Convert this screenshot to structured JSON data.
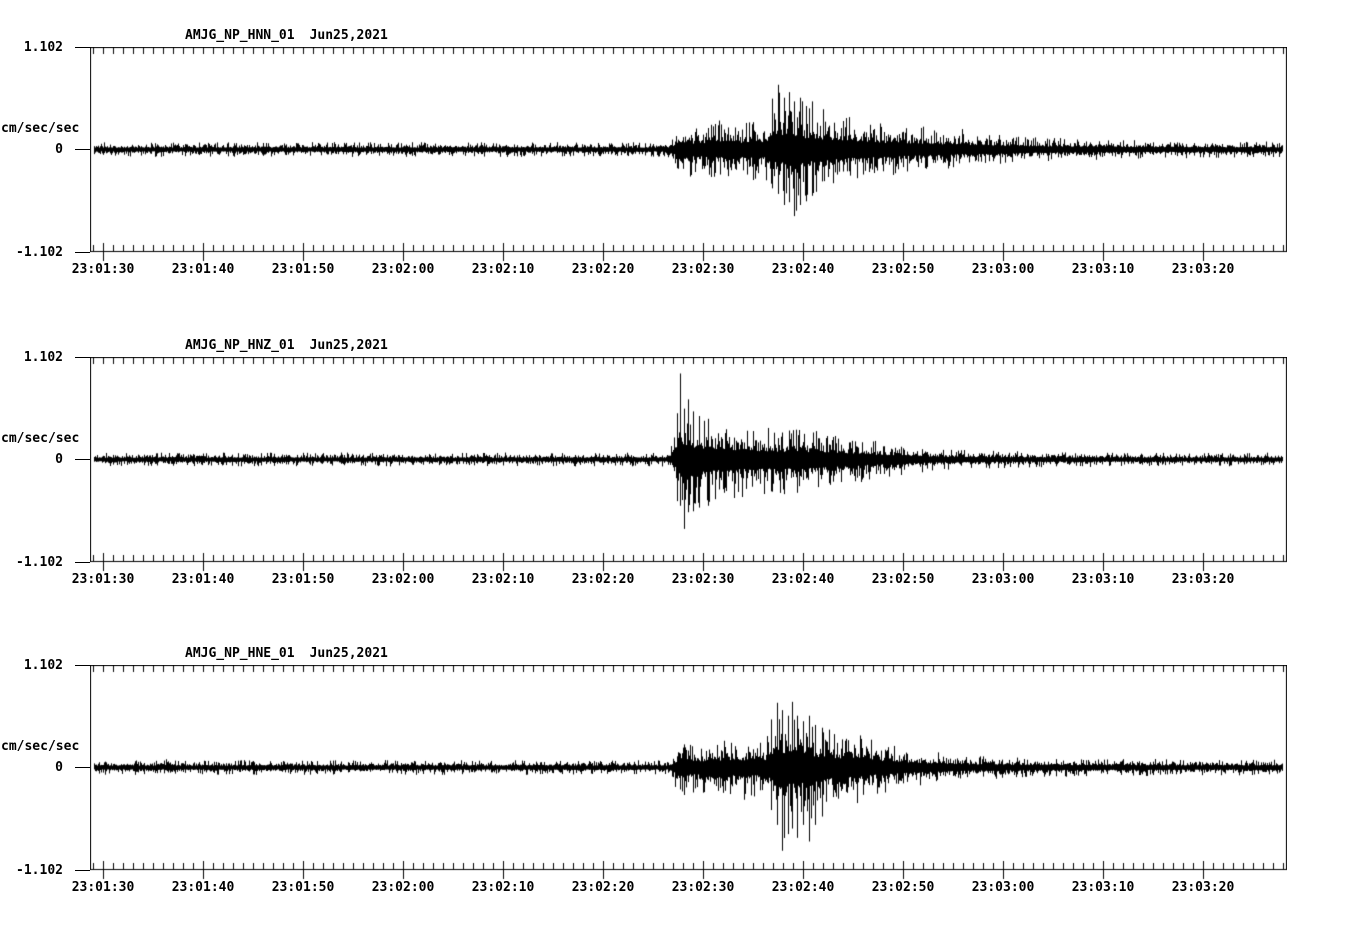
{
  "figure": {
    "background": "#ffffff",
    "trace_color": "#000000",
    "axis_color": "#000000"
  },
  "chart_data": [
    {
      "type": "line",
      "subtype": "seismogram-min-max-envelope",
      "station": "AMJG_NP_HNN_01",
      "date": "Jun25,2021",
      "y_axis": {
        "unit": "cm/sec/sec",
        "max_label": "1.102",
        "zero_label": "0",
        "min_label": "-1.102",
        "ylim": [
          -1.102,
          1.102
        ]
      },
      "x_axis": {
        "start_label": "23:01:30",
        "end_label": "23:03:20",
        "major_tick_s": 10,
        "minor_tick_s": 1,
        "t_range_s": [
          -1.3,
          118.4
        ]
      },
      "x_ticks": [
        {
          "t": 0,
          "label": "23:01:30"
        },
        {
          "t": 10,
          "label": "23:01:40"
        },
        {
          "t": 20,
          "label": "23:01:50"
        },
        {
          "t": 30,
          "label": "23:02:00"
        },
        {
          "t": 40,
          "label": "23:02:10"
        },
        {
          "t": 50,
          "label": "23:02:20"
        },
        {
          "t": 60,
          "label": "23:02:30"
        },
        {
          "t": 70,
          "label": "23:02:40"
        },
        {
          "t": 80,
          "label": "23:02:50"
        },
        {
          "t": 90,
          "label": "23:03:00"
        },
        {
          "t": 100,
          "label": "23:03:10"
        },
        {
          "t": 110,
          "label": "23:03:20"
        }
      ],
      "event_onset_s": 56.9,
      "peak_amplitude": {
        "up": 0.7,
        "down": 0.72
      },
      "seed": 11,
      "envelope_points": [
        [
          -1.3,
          0.08,
          0.08
        ],
        [
          23.8,
          0.08,
          0.08
        ],
        [
          24.3,
          0.11,
          0.11
        ],
        [
          24.9,
          0.08,
          0.08
        ],
        [
          56.4,
          0.08,
          0.08
        ],
        [
          57.0,
          0.14,
          0.16
        ],
        [
          57.6,
          0.32,
          0.4
        ],
        [
          58.2,
          0.3,
          0.35
        ],
        [
          59.0,
          0.24,
          0.26
        ],
        [
          60.0,
          0.27,
          0.3
        ],
        [
          61.0,
          0.3,
          0.33
        ],
        [
          61.8,
          0.34,
          0.3
        ],
        [
          62.4,
          0.37,
          0.36
        ],
        [
          63.2,
          0.31,
          0.33
        ],
        [
          64.0,
          0.28,
          0.31
        ],
        [
          64.8,
          0.35,
          0.33
        ],
        [
          65.4,
          0.38,
          0.4
        ],
        [
          66.0,
          0.31,
          0.33
        ],
        [
          66.5,
          0.38,
          0.35
        ],
        [
          66.9,
          0.55,
          0.42
        ],
        [
          67.5,
          0.7,
          0.48
        ],
        [
          68.1,
          0.56,
          0.6
        ],
        [
          68.6,
          0.62,
          0.57
        ],
        [
          69.1,
          0.52,
          0.72
        ],
        [
          69.7,
          0.56,
          0.6
        ],
        [
          70.3,
          0.47,
          0.56
        ],
        [
          70.9,
          0.52,
          0.5
        ],
        [
          71.6,
          0.42,
          0.47
        ],
        [
          72.4,
          0.46,
          0.42
        ],
        [
          73.2,
          0.37,
          0.4
        ],
        [
          74.1,
          0.4,
          0.37
        ],
        [
          75.0,
          0.33,
          0.35
        ],
        [
          76.0,
          0.35,
          0.37
        ],
        [
          77.0,
          0.31,
          0.32
        ],
        [
          78.2,
          0.28,
          0.29
        ],
        [
          79.6,
          0.3,
          0.27
        ],
        [
          81.0,
          0.24,
          0.26
        ],
        [
          82.5,
          0.26,
          0.23
        ],
        [
          84.0,
          0.21,
          0.22
        ],
        [
          85.6,
          0.23,
          0.2
        ],
        [
          87.2,
          0.18,
          0.19
        ],
        [
          89.0,
          0.17,
          0.17
        ],
        [
          91.0,
          0.15,
          0.15
        ],
        [
          94.0,
          0.13,
          0.13
        ],
        [
          97.0,
          0.12,
          0.12
        ],
        [
          101.0,
          0.11,
          0.11
        ],
        [
          106.0,
          0.1,
          0.1
        ],
        [
          112.0,
          0.09,
          0.09
        ],
        [
          118.4,
          0.085,
          0.085
        ]
      ]
    },
    {
      "type": "line",
      "subtype": "seismogram-min-max-envelope",
      "station": "AMJG_NP_HNZ_01",
      "date": "Jun25,2021",
      "y_axis": {
        "unit": "cm/sec/sec",
        "max_label": "1.102",
        "zero_label": "0",
        "min_label": "-1.102",
        "ylim": [
          -1.102,
          1.102
        ]
      },
      "x_axis": {
        "start_label": "23:01:30",
        "end_label": "23:03:20",
        "major_tick_s": 10,
        "minor_tick_s": 1,
        "t_range_s": [
          -1.3,
          118.4
        ]
      },
      "x_ticks": [
        {
          "t": 0,
          "label": "23:01:30"
        },
        {
          "t": 10,
          "label": "23:01:40"
        },
        {
          "t": 20,
          "label": "23:01:50"
        },
        {
          "t": 30,
          "label": "23:02:00"
        },
        {
          "t": 40,
          "label": "23:02:10"
        },
        {
          "t": 50,
          "label": "23:02:20"
        },
        {
          "t": 60,
          "label": "23:02:30"
        },
        {
          "t": 70,
          "label": "23:02:40"
        },
        {
          "t": 80,
          "label": "23:02:50"
        },
        {
          "t": 90,
          "label": "23:03:00"
        },
        {
          "t": 100,
          "label": "23:03:10"
        },
        {
          "t": 110,
          "label": "23:03:20"
        }
      ],
      "event_onset_s": 56.9,
      "peak_amplitude": {
        "up": 0.93,
        "down": 0.75
      },
      "seed": 22,
      "envelope_points": [
        [
          -1.3,
          0.075,
          0.075
        ],
        [
          56.5,
          0.075,
          0.075
        ],
        [
          57.0,
          0.2,
          0.18
        ],
        [
          57.4,
          0.5,
          0.45
        ],
        [
          57.7,
          0.93,
          0.5
        ],
        [
          58.1,
          0.55,
          0.75
        ],
        [
          58.5,
          0.65,
          0.57
        ],
        [
          59.0,
          0.52,
          0.56
        ],
        [
          59.6,
          0.47,
          0.52
        ],
        [
          60.5,
          0.44,
          0.5
        ],
        [
          61.5,
          0.42,
          0.44
        ],
        [
          62.5,
          0.4,
          0.44
        ],
        [
          63.5,
          0.37,
          0.42
        ],
        [
          64.3,
          0.44,
          0.4
        ],
        [
          65.0,
          0.37,
          0.42
        ],
        [
          66.0,
          0.35,
          0.4
        ],
        [
          67.0,
          0.34,
          0.38
        ],
        [
          68.0,
          0.32,
          0.4
        ],
        [
          68.7,
          0.42,
          0.37
        ],
        [
          69.5,
          0.34,
          0.38
        ],
        [
          70.5,
          0.32,
          0.36
        ],
        [
          71.5,
          0.34,
          0.32
        ],
        [
          72.5,
          0.3,
          0.32
        ],
        [
          73.5,
          0.28,
          0.3
        ],
        [
          74.7,
          0.26,
          0.28
        ],
        [
          76.0,
          0.22,
          0.24
        ],
        [
          77.5,
          0.2,
          0.21
        ],
        [
          79.0,
          0.18,
          0.19
        ],
        [
          80.5,
          0.15,
          0.16
        ],
        [
          82.0,
          0.13,
          0.14
        ],
        [
          83.5,
          0.12,
          0.12
        ],
        [
          85.5,
          0.11,
          0.11
        ],
        [
          88.0,
          0.1,
          0.1
        ],
        [
          91.0,
          0.09,
          0.09
        ],
        [
          95.0,
          0.085,
          0.085
        ],
        [
          100.0,
          0.08,
          0.08
        ],
        [
          106.0,
          0.075,
          0.075
        ],
        [
          118.4,
          0.075,
          0.075
        ]
      ]
    },
    {
      "type": "line",
      "subtype": "seismogram-min-max-envelope",
      "station": "AMJG_NP_HNE_01",
      "date": "Jun25,2021",
      "y_axis": {
        "unit": "cm/sec/sec",
        "max_label": "1.102",
        "zero_label": "0",
        "min_label": "-1.102",
        "ylim": [
          -1.102,
          1.102
        ]
      },
      "x_axis": {
        "start_label": "23:01:30",
        "end_label": "23:03:20",
        "major_tick_s": 10,
        "minor_tick_s": 1,
        "t_range_s": [
          -1.3,
          118.4
        ]
      },
      "x_ticks": [
        {
          "t": 0,
          "label": "23:01:30"
        },
        {
          "t": 10,
          "label": "23:01:40"
        },
        {
          "t": 20,
          "label": "23:01:50"
        },
        {
          "t": 30,
          "label": "23:02:00"
        },
        {
          "t": 40,
          "label": "23:02:10"
        },
        {
          "t": 50,
          "label": "23:02:20"
        },
        {
          "t": 60,
          "label": "23:02:30"
        },
        {
          "t": 70,
          "label": "23:02:40"
        },
        {
          "t": 80,
          "label": "23:02:50"
        },
        {
          "t": 90,
          "label": "23:03:00"
        },
        {
          "t": 100,
          "label": "23:03:10"
        },
        {
          "t": 110,
          "label": "23:03:20"
        }
      ],
      "event_onset_s": 56.9,
      "peak_amplitude": {
        "up": 0.72,
        "down": 0.9
      },
      "seed": 33,
      "envelope_points": [
        [
          -1.3,
          0.08,
          0.08
        ],
        [
          6.0,
          0.08,
          0.08
        ],
        [
          6.6,
          0.12,
          0.12
        ],
        [
          7.3,
          0.08,
          0.08
        ],
        [
          56.4,
          0.08,
          0.08
        ],
        [
          57.0,
          0.14,
          0.16
        ],
        [
          57.6,
          0.3,
          0.38
        ],
        [
          58.2,
          0.35,
          0.3
        ],
        [
          59.0,
          0.24,
          0.27
        ],
        [
          60.0,
          0.27,
          0.32
        ],
        [
          60.8,
          0.3,
          0.42
        ],
        [
          61.5,
          0.27,
          0.34
        ],
        [
          62.2,
          0.32,
          0.46
        ],
        [
          63.0,
          0.28,
          0.34
        ],
        [
          64.0,
          0.3,
          0.38
        ],
        [
          64.8,
          0.34,
          0.32
        ],
        [
          65.6,
          0.28,
          0.32
        ],
        [
          66.2,
          0.32,
          0.36
        ],
        [
          66.8,
          0.52,
          0.46
        ],
        [
          67.4,
          0.7,
          0.62
        ],
        [
          67.9,
          0.62,
          0.9
        ],
        [
          68.5,
          0.56,
          0.72
        ],
        [
          68.9,
          0.71,
          0.66
        ],
        [
          69.4,
          0.56,
          0.76
        ],
        [
          70.0,
          0.5,
          0.62
        ],
        [
          70.6,
          0.56,
          0.8
        ],
        [
          71.2,
          0.46,
          0.62
        ],
        [
          71.9,
          0.43,
          0.53
        ],
        [
          72.6,
          0.41,
          0.46
        ],
        [
          73.4,
          0.36,
          0.41
        ],
        [
          74.3,
          0.46,
          0.39
        ],
        [
          75.2,
          0.41,
          0.43
        ],
        [
          76.1,
          0.33,
          0.36
        ],
        [
          77.1,
          0.29,
          0.31
        ],
        [
          78.3,
          0.27,
          0.29
        ],
        [
          79.6,
          0.23,
          0.25
        ],
        [
          81.0,
          0.21,
          0.21
        ],
        [
          83.0,
          0.17,
          0.18
        ],
        [
          85.0,
          0.15,
          0.15
        ],
        [
          87.5,
          0.13,
          0.13
        ],
        [
          90.0,
          0.12,
          0.12
        ],
        [
          93.0,
          0.11,
          0.11
        ],
        [
          97.0,
          0.1,
          0.1
        ],
        [
          102.0,
          0.095,
          0.095
        ],
        [
          108.0,
          0.09,
          0.09
        ],
        [
          118.4,
          0.085,
          0.085
        ]
      ]
    }
  ]
}
